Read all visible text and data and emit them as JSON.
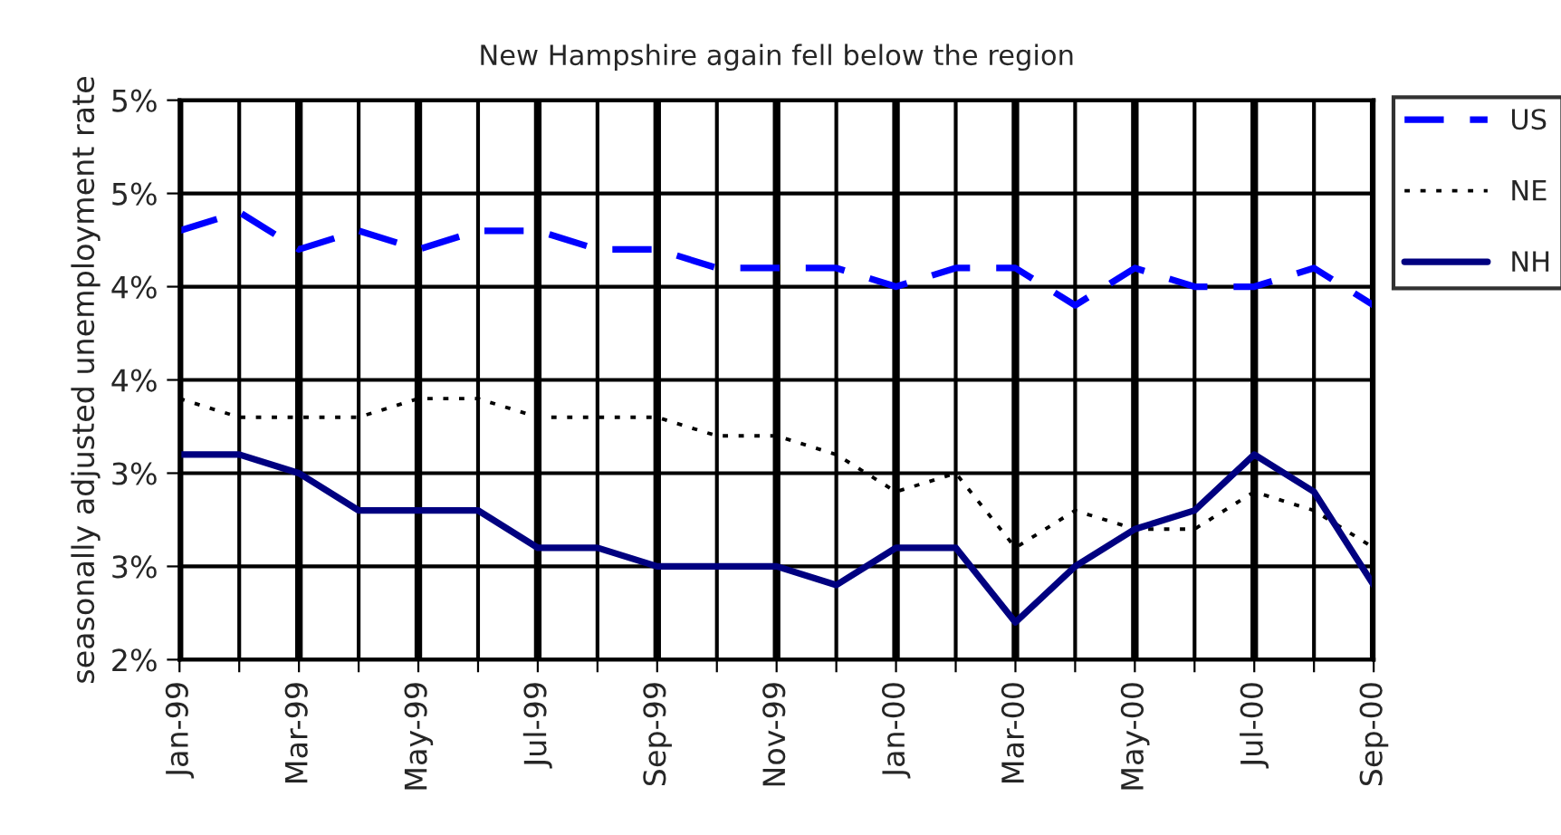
{
  "chart_data": {
    "type": "line",
    "title": "New Hampshire again fell below the region",
    "ylabel": "seasonally adjusted unemployment rate",
    "categories": [
      "Jan-99",
      null,
      "Mar-99",
      null,
      "May-99",
      null,
      "Jul-99",
      null,
      "Sep-99",
      null,
      "Nov-99",
      null,
      "Jan-00",
      null,
      "Mar-00",
      null,
      "May-00",
      null,
      "Jul-00",
      null,
      "Sep-00"
    ],
    "series": [
      {
        "name": "US",
        "color": "#0000ff",
        "line_style": "dashed",
        "values": [
          4.3,
          4.4,
          4.2,
          4.3,
          4.2,
          4.3,
          4.3,
          4.2,
          4.2,
          4.1,
          4.1,
          4.1,
          4.0,
          4.1,
          4.1,
          3.9,
          4.1,
          4.0,
          4.0,
          4.1,
          3.9
        ]
      },
      {
        "name": "NE",
        "color": "#000000",
        "line_style": "dotted",
        "values": [
          3.4,
          3.3,
          3.3,
          3.3,
          3.4,
          3.4,
          3.3,
          3.3,
          3.3,
          3.2,
          3.2,
          3.1,
          2.9,
          3.0,
          2.6,
          2.8,
          2.7,
          2.7,
          2.9,
          2.8,
          2.6
        ]
      },
      {
        "name": "NH",
        "color": "#000080",
        "line_style": "solid",
        "values": [
          3.1,
          3.1,
          3.0,
          2.8,
          2.8,
          2.8,
          2.6,
          2.6,
          2.5,
          2.5,
          2.5,
          2.4,
          2.6,
          2.6,
          2.2,
          2.5,
          2.7,
          2.8,
          3.1,
          2.9,
          2.4
        ]
      }
    ],
    "ylim": [
      2,
      5
    ],
    "yticks": [
      {
        "value": 2,
        "label": "2%"
      },
      {
        "value": 2.5,
        "label": "3%"
      },
      {
        "value": 3,
        "label": "3%"
      },
      {
        "value": 3.5,
        "label": "4%"
      },
      {
        "value": 4,
        "label": "4%"
      },
      {
        "value": 4.5,
        "label": "5%"
      },
      {
        "value": 5,
        "label": "5%"
      }
    ],
    "grid": true,
    "legend": "top right",
    "marker": "none"
  }
}
